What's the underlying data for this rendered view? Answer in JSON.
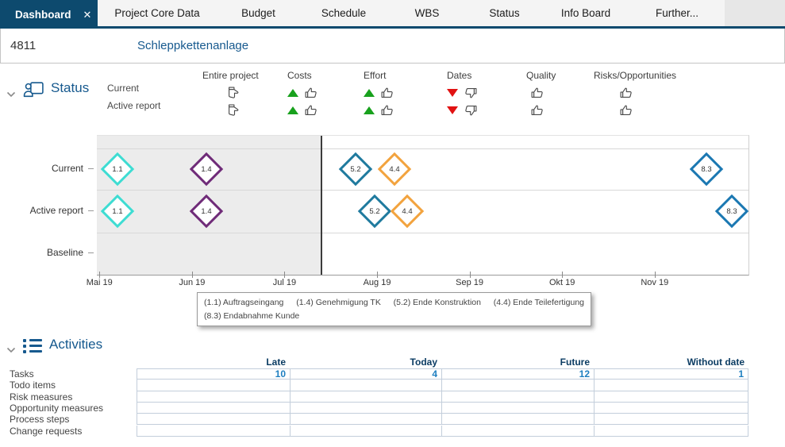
{
  "tabs": {
    "items": [
      {
        "label": "Dashboard",
        "active": true,
        "closable": true
      },
      {
        "label": "Project Core Data"
      },
      {
        "label": "Budget"
      },
      {
        "label": "Schedule"
      },
      {
        "label": "WBS"
      },
      {
        "label": "Status"
      },
      {
        "label": "Info Board"
      },
      {
        "label": "Further..."
      }
    ]
  },
  "header": {
    "project_number": "4811",
    "project_name": "Schleppkettenanlage"
  },
  "status": {
    "title": "Status",
    "row_labels": [
      "Current",
      "Active report"
    ],
    "columns": [
      {
        "label": "Entire project",
        "trend": null,
        "thumb": "neutral"
      },
      {
        "label": "Costs",
        "trend": "up",
        "thumb": "up"
      },
      {
        "label": "Effort",
        "trend": "up",
        "thumb": "up"
      },
      {
        "label": "Dates",
        "trend": "down",
        "thumb": "down"
      },
      {
        "label": "Quality",
        "trend": null,
        "thumb": "up"
      },
      {
        "label": "Risks/Opportunities",
        "trend": null,
        "thumb": "up"
      }
    ],
    "colors": {
      "trend_up": "#18a11d",
      "trend_down": "#e11212",
      "thumb_outline": "#4a4a4a"
    }
  },
  "chart_data": {
    "type": "timeline-milestones",
    "rows": [
      "Current",
      "Active report",
      "Baseline"
    ],
    "x_axis": {
      "labels": [
        "Mai 19",
        "Jun 19",
        "Jul 19",
        "Aug 19",
        "Sep 19",
        "Okt 19",
        "Nov 19"
      ],
      "tick_percents": [
        0.4,
        14.6,
        28.8,
        43.0,
        57.2,
        71.4,
        85.6
      ]
    },
    "today_percent": 34.5,
    "past_region_color": "#ececec",
    "milestones": [
      {
        "row": "Current",
        "id": "1.1",
        "x_percent": 3.2,
        "color": "#3edcd2"
      },
      {
        "row": "Current",
        "id": "1.4",
        "x_percent": 16.8,
        "color": "#6f2b78"
      },
      {
        "row": "Current",
        "id": "5.2",
        "x_percent": 39.7,
        "color": "#1f7a9e"
      },
      {
        "row": "Current",
        "id": "4.4",
        "x_percent": 45.7,
        "color": "#f2a33e"
      },
      {
        "row": "Current",
        "id": "8.3",
        "x_percent": 93.5,
        "color": "#1b78b2"
      },
      {
        "row": "Active report",
        "id": "1.1",
        "x_percent": 3.2,
        "color": "#3edcd2"
      },
      {
        "row": "Active report",
        "id": "1.4",
        "x_percent": 16.8,
        "color": "#6f2b78"
      },
      {
        "row": "Active report",
        "id": "5.2",
        "x_percent": 42.6,
        "color": "#1f7a9e"
      },
      {
        "row": "Active report",
        "id": "4.4",
        "x_percent": 47.6,
        "color": "#f2a33e"
      },
      {
        "row": "Active report",
        "id": "8.3",
        "x_percent": 97.4,
        "color": "#1b78b2"
      }
    ],
    "legend": [
      "(1.1) Auftragseingang",
      "(1.4) Genehmigung TK",
      "(5.2) Ende Konstruktion",
      "(4.4) Ende Teilefertigung",
      "(8.3) Endabnahme Kunde"
    ]
  },
  "activities": {
    "title": "Activities",
    "columns": [
      "Late",
      "Today",
      "Future",
      "Without date"
    ],
    "rows": [
      {
        "label": "Tasks",
        "values": [
          "10",
          "4",
          "12",
          "1"
        ]
      },
      {
        "label": "Todo items",
        "values": [
          "",
          "",
          "",
          ""
        ]
      },
      {
        "label": "Risk measures",
        "values": [
          "",
          "",
          "",
          ""
        ]
      },
      {
        "label": "Opportunity measures",
        "values": [
          "",
          "",
          "",
          ""
        ]
      },
      {
        "label": "Process steps",
        "values": [
          "",
          "",
          "",
          ""
        ]
      },
      {
        "label": "Change requests",
        "values": [
          "",
          "",
          "",
          ""
        ]
      }
    ],
    "value_color": "#1e7fc0"
  }
}
